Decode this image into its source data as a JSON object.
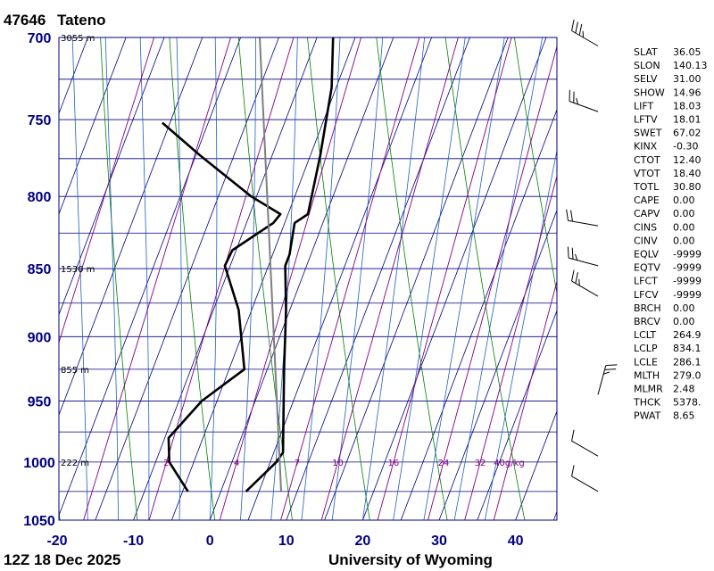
{
  "station": {
    "id": "47646",
    "name": "Tateno"
  },
  "footer": {
    "time": "12Z 18 Dec 2025",
    "source": "University of Wyoming"
  },
  "chart_data": {
    "type": "line",
    "plot": "skew-t log-p sounding",
    "xlim": [
      -20,
      45
    ],
    "ylim_hpa": [
      1050,
      700
    ],
    "y_scale": "log",
    "pressure_ticks": [
      700,
      750,
      800,
      850,
      900,
      950,
      1000,
      1050
    ],
    "temp_ticks": [
      -20,
      -10,
      0,
      10,
      20,
      30,
      40
    ],
    "height_labels": [
      {
        "p": 700,
        "label": "3055 m"
      },
      {
        "p": 850,
        "label": "1530 m"
      },
      {
        "p": 925,
        "label": "855 m"
      },
      {
        "p": 1000,
        "label": "222 m"
      }
    ],
    "mixing_ratio_labels": [
      "2",
      "4",
      "7",
      "10",
      "16",
      "24",
      "32",
      "40g/kg"
    ],
    "mixing_ratio_values": [
      2,
      4,
      7,
      10,
      16,
      24,
      32,
      40
    ],
    "series": [
      {
        "role": "temperature",
        "color": "#000000",
        "points": [
          [
            1025,
            3.3
          ],
          [
            1000,
            5.8
          ],
          [
            992,
            6.2
          ],
          [
            925,
            2.2
          ],
          [
            880,
            -0.5
          ],
          [
            848,
            -2.8
          ],
          [
            840,
            -2.8
          ],
          [
            818,
            -3.7
          ],
          [
            812,
            -2.4
          ],
          [
            773,
            -3.7
          ],
          [
            730,
            -5.6
          ],
          [
            700,
            -7.9
          ]
        ]
      },
      {
        "role": "dewpoint",
        "color": "#000000",
        "points": [
          [
            1025,
            -4.3
          ],
          [
            1000,
            -8.2
          ],
          [
            980,
            -9.5
          ],
          [
            950,
            -7.0
          ],
          [
            925,
            -3.0
          ],
          [
            880,
            -6.7
          ],
          [
            848,
            -10.7
          ],
          [
            837,
            -10.5
          ],
          [
            818,
            -6.5
          ],
          [
            812,
            -6.0
          ],
          [
            800,
            -10.7
          ],
          [
            773,
            -19.4
          ],
          [
            752,
            -26.0
          ]
        ]
      },
      {
        "role": "parcel",
        "color": "#7f7f7f",
        "points": [
          [
            1025,
            7.9
          ],
          [
            700,
            -17.5
          ]
        ]
      }
    ]
  },
  "indices": [
    {
      "key": "SLAT",
      "value": "36.05"
    },
    {
      "key": "SLON",
      "value": "140.13"
    },
    {
      "key": "SELV",
      "value": "31.00"
    },
    {
      "key": "SHOW",
      "value": "14.96"
    },
    {
      "key": "LIFT",
      "value": "18.03"
    },
    {
      "key": "LFTV",
      "value": "18.01"
    },
    {
      "key": "SWET",
      "value": "67.02"
    },
    {
      "key": "KINX",
      "value": "-0.30"
    },
    {
      "key": "CTOT",
      "value": "12.40"
    },
    {
      "key": "VTOT",
      "value": "18.40"
    },
    {
      "key": "TOTL",
      "value": "30.80"
    },
    {
      "key": "CAPE",
      "value": "0.00"
    },
    {
      "key": "CAPV",
      "value": "0.00"
    },
    {
      "key": "CINS",
      "value": "0.00"
    },
    {
      "key": "CINV",
      "value": "0.00"
    },
    {
      "key": "EQLV",
      "value": "-9999"
    },
    {
      "key": "EQTV",
      "value": "-9999"
    },
    {
      "key": "LFCT",
      "value": "-9999"
    },
    {
      "key": "LFCV",
      "value": "-9999"
    },
    {
      "key": "BRCH",
      "value": "0.00"
    },
    {
      "key": "BRCV",
      "value": "0.00"
    },
    {
      "key": "LCLT",
      "value": "264.9"
    },
    {
      "key": "LCLP",
      "value": "834.1"
    },
    {
      "key": "LCLE",
      "value": "286.1"
    },
    {
      "key": "MLTH",
      "value": "279.0"
    },
    {
      "key": "MLMR",
      "value": "2.48"
    },
    {
      "key": "THCK",
      "value": "5378."
    },
    {
      "key": "PWAT",
      "value": "8.65"
    }
  ],
  "wind_barbs": [
    {
      "p": 705,
      "dir": 300,
      "kt": 35
    },
    {
      "p": 745,
      "dir": 290,
      "kt": 25
    },
    {
      "p": 820,
      "dir": 280,
      "kt": 20
    },
    {
      "p": 848,
      "dir": 285,
      "kt": 25
    },
    {
      "p": 870,
      "dir": 300,
      "kt": 25
    },
    {
      "p": 945,
      "dir": 15,
      "kt": 25
    },
    {
      "p": 995,
      "dir": 300,
      "kt": 10
    },
    {
      "p": 1025,
      "dir": 300,
      "kt": 10
    }
  ],
  "colors": {
    "frame": "#000080",
    "isotherm": "#000080",
    "dry_adiabat": "#008000",
    "moist_adiabat": "#1f5fbf",
    "mixing_ratio": "#800080",
    "sounding": "#000000",
    "parcel": "#7f7f7f"
  }
}
